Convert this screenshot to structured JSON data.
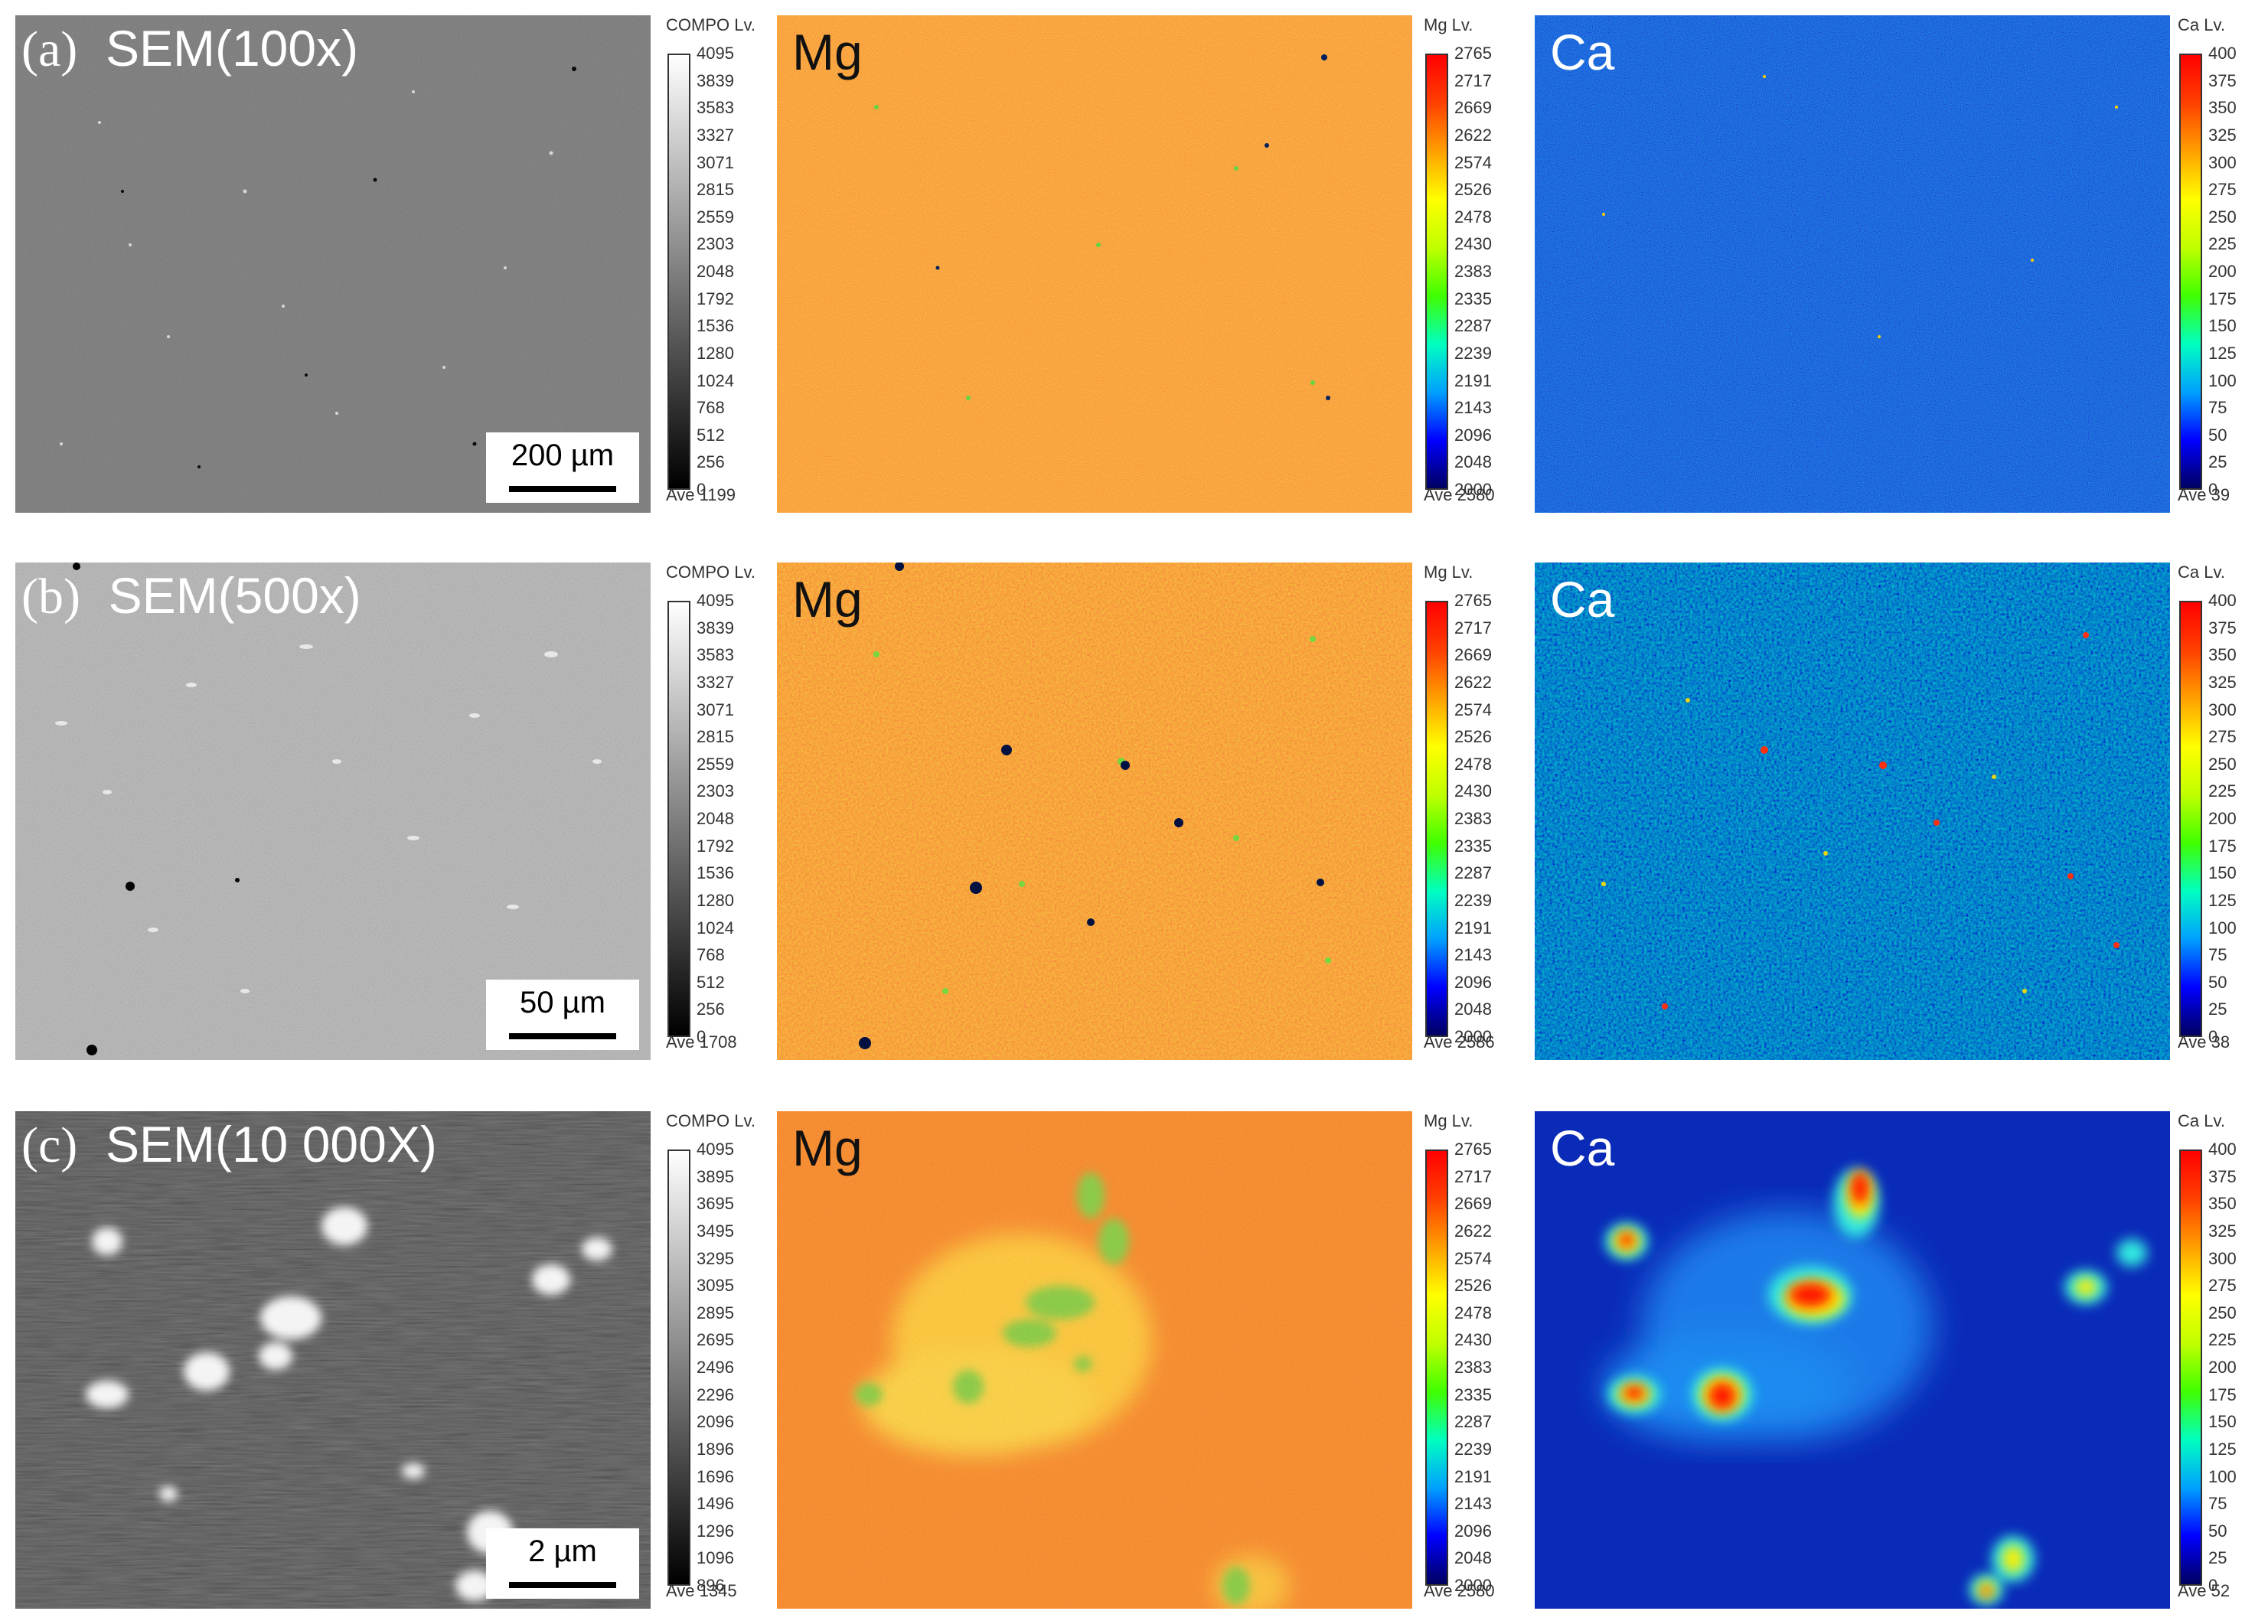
{
  "rows": [
    {
      "sem_label": "(a)",
      "sem_title": "SEM(100x)",
      "scale_text": "200 µm",
      "sem_bar": {
        "header": "COMPO  Lv.",
        "ticks": [
          "4095",
          "3839",
          "3583",
          "3327",
          "3071",
          "2815",
          "2559",
          "2303",
          "2048",
          "1792",
          "1536",
          "1280",
          "1024",
          "768",
          "512",
          "256",
          "0"
        ],
        "ave": "Ave 1199"
      },
      "mg_title": "Mg",
      "mg_bar": {
        "header": "Mg  Lv.",
        "ticks": [
          "2765",
          "2717",
          "2669",
          "2622",
          "2574",
          "2526",
          "2478",
          "2430",
          "2383",
          "2335",
          "2287",
          "2239",
          "2191",
          "2143",
          "2096",
          "2048",
          "2000"
        ],
        "ave": "Ave 2580"
      },
      "ca_title": "Ca",
      "ca_bar": {
        "header": "Ca  Lv.",
        "ticks": [
          "400",
          "375",
          "350",
          "325",
          "300",
          "275",
          "250",
          "225",
          "200",
          "175",
          "150",
          "125",
          "100",
          "75",
          "50",
          "25",
          "0"
        ],
        "ave": "Ave 39"
      }
    },
    {
      "sem_label": "(b)",
      "sem_title": "SEM(500x)",
      "scale_text": "50 µm",
      "sem_bar": {
        "header": "COMPO  Lv.",
        "ticks": [
          "4095",
          "3839",
          "3583",
          "3327",
          "3071",
          "2815",
          "2559",
          "2303",
          "2048",
          "1792",
          "1536",
          "1280",
          "1024",
          "768",
          "512",
          "256",
          "0"
        ],
        "ave": "Ave 1708"
      },
      "mg_title": "Mg",
      "mg_bar": {
        "header": "Mg  Lv.",
        "ticks": [
          "2765",
          "2717",
          "2669",
          "2622",
          "2574",
          "2526",
          "2478",
          "2430",
          "2383",
          "2335",
          "2287",
          "2239",
          "2191",
          "2143",
          "2096",
          "2048",
          "2000"
        ],
        "ave": "Ave 2586"
      },
      "ca_title": "Ca",
      "ca_bar": {
        "header": "Ca  Lv.",
        "ticks": [
          "400",
          "375",
          "350",
          "325",
          "300",
          "275",
          "250",
          "225",
          "200",
          "175",
          "150",
          "125",
          "100",
          "75",
          "50",
          "25",
          "0"
        ],
        "ave": "Ave 38"
      }
    },
    {
      "sem_label": "(c)",
      "sem_title": "SEM(10 000X)",
      "scale_text": "2 µm",
      "sem_bar": {
        "header": "COMPO  Lv.",
        "ticks": [
          "4095",
          "3895",
          "3695",
          "3495",
          "3295",
          "3095",
          "2895",
          "2695",
          "2496",
          "2296",
          "2096",
          "1896",
          "1696",
          "1496",
          "1296",
          "1096",
          "896"
        ],
        "ave": "Ave 1345"
      },
      "mg_title": "Mg",
      "mg_bar": {
        "header": "Mg  Lv.",
        "ticks": [
          "2765",
          "2717",
          "2669",
          "2622",
          "2574",
          "2526",
          "2478",
          "2430",
          "2383",
          "2335",
          "2287",
          "2239",
          "2191",
          "2143",
          "2096",
          "2048",
          "2000"
        ],
        "ave": "Ave 2580"
      },
      "ca_title": "Ca",
      "ca_bar": {
        "header": "Ca  Lv.",
        "ticks": [
          "400",
          "375",
          "350",
          "325",
          "300",
          "275",
          "250",
          "225",
          "200",
          "175",
          "150",
          "125",
          "100",
          "75",
          "50",
          "25",
          "0"
        ],
        "ave": "Ave 52"
      }
    }
  ],
  "colors": {
    "sem_dark": "#3b3b3b",
    "sem_mid": "#6e6e6e",
    "mg_base": "#f07a1e",
    "ca_base": "#0a28c8",
    "jet": [
      "#000060",
      "#0000ff",
      "#00a0ff",
      "#00ffc0",
      "#40ff00",
      "#c0ff00",
      "#ffff00",
      "#ffa000",
      "#ff4000",
      "#ff0000"
    ]
  }
}
